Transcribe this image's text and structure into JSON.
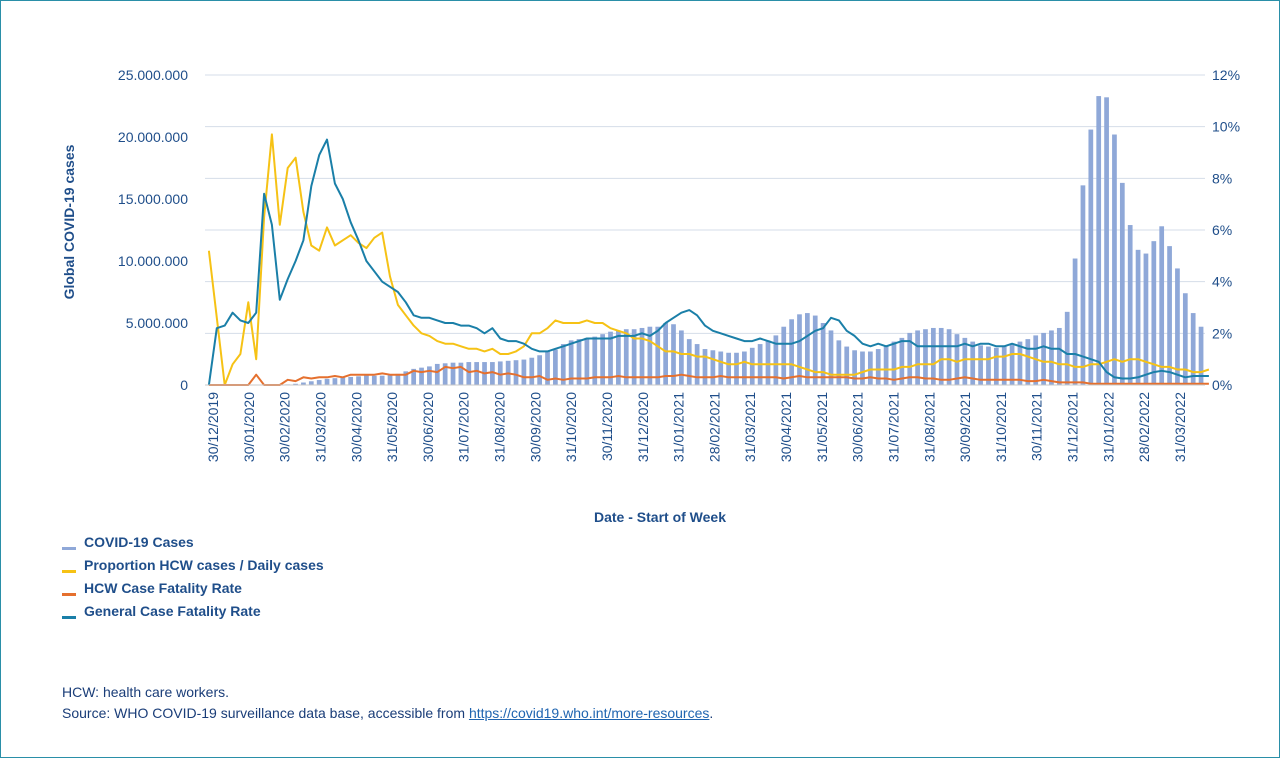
{
  "chart_data": {
    "type": "bar+line (dual axis)",
    "ylabel_left": "Global COVID-19 cases",
    "xlabel": "Date - Start of Week",
    "y_left_ticks": [
      "0",
      "5.000.000",
      "10.000.000",
      "15.000.000",
      "20.000.000",
      "25.000.000"
    ],
    "y_left_range": [
      0,
      25000000
    ],
    "y_right_ticks": [
      "0%",
      "2%",
      "4%",
      "6%",
      "8%",
      "10%",
      "12%"
    ],
    "y_right_range": [
      0,
      12
    ],
    "x_ticks": [
      "30/12/2019",
      "30/01/2020",
      "30/02/2020",
      "31/03/2020",
      "30/04/2020",
      "31/05/2020",
      "30/06/2020",
      "31/07/2020",
      "31/08/2020",
      "30/09/2020",
      "31/10/2020",
      "30/11/2020",
      "31/12/2020",
      "31/01/2021",
      "28/02/2021",
      "31/03/2021",
      "30/04/2021",
      "31/05/2021",
      "30/06/2021",
      "31/07/2021",
      "31/08/2021",
      "30/09/2021",
      "31/10/2021",
      "30/11/2021",
      "31/12/2021",
      "31/01/2022",
      "28/02/2022",
      "31/03/2022"
    ],
    "grid": "horizontal",
    "legend_position": "bottom-left",
    "series": [
      {
        "name": "COVID-19 Cases",
        "kind": "bar",
        "axis": "left",
        "color": "#8fa8d8",
        "values": [
          0,
          0,
          0,
          0,
          0,
          0,
          0,
          0,
          0,
          0,
          50000,
          100000,
          200000,
          300000,
          400000,
          500000,
          550000,
          600000,
          650000,
          700000,
          800000,
          750000,
          750000,
          800000,
          900000,
          1100000,
          1300000,
          1400000,
          1500000,
          1700000,
          1750000,
          1800000,
          1800000,
          1850000,
          1850000,
          1850000,
          1850000,
          1900000,
          1950000,
          2000000,
          2050000,
          2200000,
          2400000,
          2700000,
          2850000,
          3300000,
          3600000,
          3700000,
          3800000,
          3900000,
          4100000,
          4300000,
          4400000,
          4500000,
          4500000,
          4600000,
          4700000,
          4700000,
          5000000,
          4900000,
          4400000,
          3700000,
          3300000,
          2900000,
          2800000,
          2700000,
          2600000,
          2600000,
          2700000,
          3000000,
          3300000,
          3600000,
          4000000,
          4700000,
          5300000,
          5700000,
          5800000,
          5600000,
          5000000,
          4400000,
          3600000,
          3100000,
          2800000,
          2700000,
          2700000,
          2900000,
          3200000,
          3500000,
          3800000,
          4200000,
          4400000,
          4500000,
          4600000,
          4600000,
          4500000,
          4100000,
          3800000,
          3500000,
          3200000,
          3100000,
          3000000,
          3100000,
          3300000,
          3500000,
          3700000,
          4000000,
          4200000,
          4400000,
          4600000,
          5900000,
          10200000,
          16100000,
          20600000,
          23300000,
          23200000,
          20200000,
          16300000,
          12900000,
          10900000,
          10600000,
          11600000,
          12800000,
          11200000,
          9400000,
          7400000,
          5800000,
          4700000
        ]
      },
      {
        "name": "Proportion HCW cases / Daily cases",
        "kind": "line",
        "axis": "right",
        "color": "#f6c215",
        "values": [
          5.2,
          2.6,
          0.0,
          0.8,
          1.2,
          3.2,
          1.0,
          6.5,
          9.7,
          6.2,
          8.4,
          8.8,
          6.7,
          5.4,
          5.2,
          6.1,
          5.4,
          5.6,
          5.8,
          5.5,
          5.3,
          5.7,
          5.9,
          4.2,
          3.1,
          2.7,
          2.3,
          2.0,
          1.9,
          1.7,
          1.6,
          1.6,
          1.5,
          1.4,
          1.4,
          1.3,
          1.4,
          1.2,
          1.2,
          1.3,
          1.5,
          2.0,
          2.0,
          2.2,
          2.5,
          2.4,
          2.4,
          2.4,
          2.5,
          2.4,
          2.4,
          2.2,
          2.1,
          2.0,
          1.8,
          1.8,
          1.7,
          1.5,
          1.3,
          1.3,
          1.2,
          1.2,
          1.1,
          1.1,
          1.0,
          0.9,
          0.8,
          0.8,
          0.9,
          0.8,
          0.8,
          0.8,
          0.8,
          0.8,
          0.8,
          0.7,
          0.6,
          0.5,
          0.5,
          0.4,
          0.4,
          0.4,
          0.4,
          0.5,
          0.6,
          0.6,
          0.6,
          0.6,
          0.7,
          0.7,
          0.8,
          0.8,
          0.8,
          1.0,
          1.0,
          0.9,
          1.0,
          1.0,
          1.0,
          1.0,
          1.1,
          1.1,
          1.2,
          1.2,
          1.1,
          1.0,
          0.9,
          0.9,
          0.8,
          0.8,
          0.7,
          0.7,
          0.8,
          0.8,
          0.9,
          1.0,
          0.9,
          1.0,
          1.0,
          0.9,
          0.8,
          0.7,
          0.7,
          0.6,
          0.6,
          0.5,
          0.5,
          0.6
        ]
      },
      {
        "name": "HCW Case Fatality Rate",
        "kind": "line",
        "axis": "right",
        "color": "#e5702e",
        "values": [
          0.0,
          0.0,
          0.0,
          0.0,
          0.0,
          0.0,
          0.4,
          0.0,
          0.0,
          0.0,
          0.2,
          0.15,
          0.3,
          0.25,
          0.3,
          0.3,
          0.35,
          0.3,
          0.4,
          0.4,
          0.4,
          0.4,
          0.45,
          0.4,
          0.4,
          0.4,
          0.55,
          0.5,
          0.55,
          0.5,
          0.7,
          0.65,
          0.7,
          0.5,
          0.55,
          0.45,
          0.5,
          0.4,
          0.45,
          0.4,
          0.3,
          0.3,
          0.35,
          0.2,
          0.25,
          0.2,
          0.25,
          0.25,
          0.25,
          0.3,
          0.3,
          0.3,
          0.35,
          0.3,
          0.3,
          0.3,
          0.3,
          0.3,
          0.35,
          0.35,
          0.4,
          0.35,
          0.3,
          0.3,
          0.3,
          0.35,
          0.3,
          0.3,
          0.3,
          0.3,
          0.3,
          0.3,
          0.3,
          0.25,
          0.3,
          0.35,
          0.3,
          0.3,
          0.3,
          0.3,
          0.3,
          0.3,
          0.25,
          0.25,
          0.3,
          0.25,
          0.25,
          0.2,
          0.25,
          0.3,
          0.3,
          0.25,
          0.25,
          0.2,
          0.2,
          0.25,
          0.3,
          0.25,
          0.2,
          0.2,
          0.2,
          0.2,
          0.2,
          0.2,
          0.15,
          0.15,
          0.2,
          0.15,
          0.1,
          0.1,
          0.1,
          0.1,
          0.05,
          0.05,
          0.05,
          0.05,
          0.05,
          0.05,
          0.05,
          0.05,
          0.05,
          0.05,
          0.05,
          0.05,
          0.05,
          0.05,
          0.05,
          0.05
        ]
      },
      {
        "name": "General Case Fatality Rate",
        "kind": "line",
        "axis": "right",
        "color": "#1a7fa8",
        "values": [
          0.0,
          2.2,
          2.3,
          2.8,
          2.5,
          2.4,
          2.8,
          7.4,
          6.2,
          3.3,
          4.1,
          4.8,
          5.6,
          7.7,
          8.9,
          9.5,
          7.8,
          7.2,
          6.3,
          5.6,
          4.8,
          4.4,
          4.0,
          3.8,
          3.6,
          3.2,
          2.7,
          2.6,
          2.6,
          2.5,
          2.4,
          2.4,
          2.3,
          2.3,
          2.2,
          2.0,
          2.2,
          1.8,
          1.7,
          1.7,
          1.6,
          1.4,
          1.3,
          1.3,
          1.4,
          1.5,
          1.6,
          1.7,
          1.8,
          1.8,
          1.8,
          1.8,
          1.9,
          1.9,
          1.9,
          2.0,
          1.9,
          2.1,
          2.4,
          2.6,
          2.8,
          2.9,
          2.7,
          2.3,
          2.1,
          2.0,
          1.9,
          1.8,
          1.7,
          1.7,
          1.8,
          1.7,
          1.6,
          1.6,
          1.6,
          1.7,
          1.9,
          2.1,
          2.2,
          2.6,
          2.5,
          2.1,
          1.9,
          1.6,
          1.5,
          1.6,
          1.5,
          1.6,
          1.7,
          1.7,
          1.5,
          1.5,
          1.5,
          1.5,
          1.5,
          1.5,
          1.6,
          1.5,
          1.6,
          1.6,
          1.5,
          1.5,
          1.6,
          1.5,
          1.4,
          1.4,
          1.5,
          1.4,
          1.4,
          1.2,
          1.2,
          1.1,
          1.0,
          0.9,
          0.5,
          0.3,
          0.25,
          0.25,
          0.3,
          0.4,
          0.5,
          0.55,
          0.5,
          0.4,
          0.3,
          0.35,
          0.35,
          0.35
        ]
      }
    ]
  },
  "notes": {
    "line1": "HCW: health care workers.",
    "line2_prefix": "Source: WHO COVID-19 surveillance data base, accessible from ",
    "link": "https://covid19.who.int/more-resources",
    "line2_suffix": "."
  }
}
